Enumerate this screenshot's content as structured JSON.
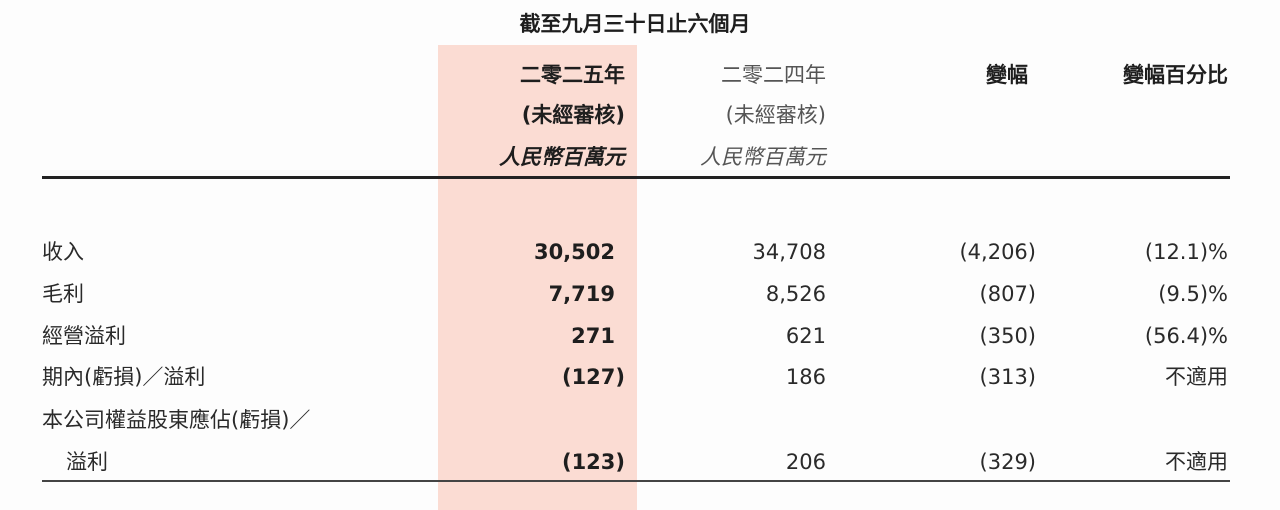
{
  "period_header": "截至九月三十日止六個月",
  "columns": [
    {
      "year": "二零二五年",
      "audit": "(未經審核)",
      "unit": "人民幣百萬元"
    },
    {
      "year": "二零二四年",
      "audit": "(未經審核)",
      "unit": "人民幣百萬元"
    },
    {
      "label": "變幅"
    },
    {
      "label": "變幅百分比"
    }
  ],
  "highlight_color": "#fbdcd3",
  "rows": [
    {
      "label": "收入",
      "y2025": "30,502",
      "y2024": "34,708",
      "change": "(4,206)",
      "pct": "(12.1)%"
    },
    {
      "label": "毛利",
      "y2025": "7,719",
      "y2024": "8,526",
      "change": "(807)",
      "pct": "(9.5)%"
    },
    {
      "label": "經營溢利",
      "y2025": "271",
      "y2024": "621",
      "change": "(350)",
      "pct": "(56.4)%"
    },
    {
      "label": "期內(虧損)／溢利",
      "y2025": "(127)",
      "y2024": "186",
      "change": "(313)",
      "pct": "不適用"
    },
    {
      "label": "本公司權益股東應佔(虧損)／",
      "label_cont": "溢利",
      "y2025": "(123)",
      "y2024": "206",
      "change": "(329)",
      "pct": "不適用"
    }
  ]
}
